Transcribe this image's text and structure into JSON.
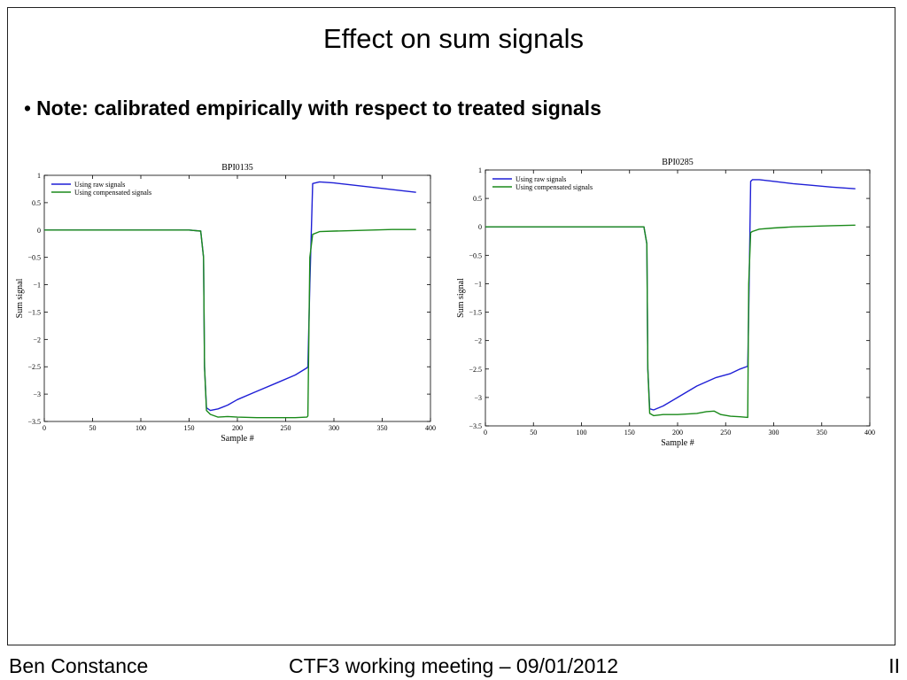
{
  "slide": {
    "title": "Effect on sum signals",
    "bullet": "Note: calibrated empirically with respect to treated signals"
  },
  "footer": {
    "author": "Ben Constance",
    "meeting": "CTF3 working meeting – 09/01/2012",
    "page": "II"
  },
  "colors": {
    "raw": "#1f1fd6",
    "compensated": "#1a8a1a"
  },
  "chart_data": [
    {
      "type": "line",
      "title": "BPI0135",
      "xlabel": "Sample #",
      "ylabel": "Sum signal",
      "xlim": [
        0,
        400
      ],
      "ylim": [
        -3.5,
        1
      ],
      "xticks": [
        0,
        50,
        100,
        150,
        200,
        250,
        300,
        350,
        400
      ],
      "yticks": [
        1,
        0.5,
        0,
        -0.5,
        -1,
        -1.5,
        -2,
        -2.5,
        -3,
        -3.5
      ],
      "legend": "top-left",
      "series": [
        {
          "name": "Using raw signals",
          "x": [
            0,
            50,
            100,
            150,
            162,
            165,
            166,
            168,
            172,
            180,
            190,
            200,
            220,
            240,
            260,
            272,
            273,
            275,
            278,
            285,
            300,
            320,
            340,
            360,
            385
          ],
          "y": [
            0,
            0,
            0,
            0,
            -0.02,
            -0.5,
            -2.5,
            -3.25,
            -3.3,
            -3.27,
            -3.2,
            -3.1,
            -2.95,
            -2.8,
            -2.65,
            -2.52,
            -2.5,
            -1.0,
            0.85,
            0.88,
            0.86,
            0.82,
            0.78,
            0.74,
            0.69
          ]
        },
        {
          "name": "Using compensated signals",
          "x": [
            0,
            50,
            100,
            150,
            162,
            165,
            166,
            168,
            172,
            180,
            190,
            200,
            220,
            240,
            260,
            272,
            273,
            275,
            278,
            285,
            300,
            320,
            340,
            360,
            385
          ],
          "y": [
            0,
            0,
            0,
            0,
            -0.02,
            -0.5,
            -2.5,
            -3.3,
            -3.37,
            -3.42,
            -3.41,
            -3.42,
            -3.43,
            -3.43,
            -3.43,
            -3.42,
            -3.4,
            -0.5,
            -0.08,
            -0.03,
            -0.02,
            -0.01,
            0.0,
            0.01,
            0.01
          ]
        }
      ]
    },
    {
      "type": "line",
      "title": "BPI0285",
      "xlabel": "Sample #",
      "ylabel": "Sum signal",
      "xlim": [
        0,
        400
      ],
      "ylim": [
        -3.5,
        1
      ],
      "xticks": [
        0,
        50,
        100,
        150,
        200,
        250,
        300,
        350,
        400
      ],
      "yticks": [
        1,
        0.5,
        0,
        -0.5,
        -1,
        -1.5,
        -2,
        -2.5,
        -3,
        -3.5
      ],
      "legend": "top-left",
      "series": [
        {
          "name": "Using raw signals",
          "x": [
            0,
            50,
            100,
            150,
            165,
            168,
            169,
            171,
            175,
            185,
            200,
            220,
            240,
            255,
            265,
            273,
            274,
            276,
            278,
            285,
            300,
            320,
            340,
            360,
            385
          ],
          "y": [
            0,
            0,
            0,
            0,
            0,
            -0.3,
            -2.5,
            -3.2,
            -3.22,
            -3.15,
            -3.0,
            -2.8,
            -2.65,
            -2.58,
            -2.5,
            -2.45,
            -1.5,
            0.8,
            0.83,
            0.83,
            0.8,
            0.76,
            0.73,
            0.7,
            0.67
          ]
        },
        {
          "name": "Using compensated signals",
          "x": [
            0,
            50,
            100,
            150,
            165,
            168,
            169,
            171,
            175,
            185,
            200,
            220,
            230,
            238,
            245,
            255,
            265,
            273,
            274,
            276,
            278,
            285,
            300,
            320,
            340,
            360,
            385
          ],
          "y": [
            0,
            0,
            0,
            0,
            0,
            -0.3,
            -2.5,
            -3.28,
            -3.32,
            -3.3,
            -3.3,
            -3.28,
            -3.25,
            -3.24,
            -3.3,
            -3.33,
            -3.34,
            -3.35,
            -1.0,
            -0.1,
            -0.08,
            -0.04,
            -0.02,
            0.0,
            0.01,
            0.02,
            0.03
          ]
        }
      ]
    }
  ]
}
